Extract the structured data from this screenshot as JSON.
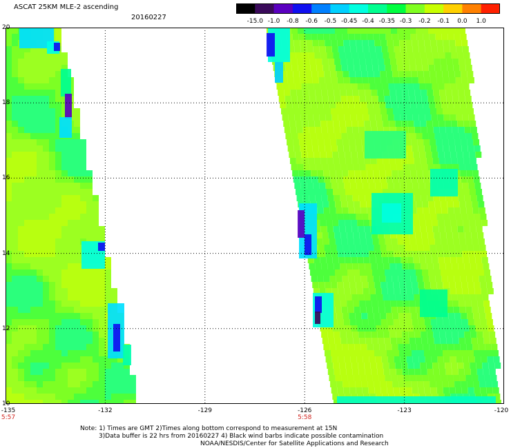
{
  "title": "ASCAT 25KM MLE-2 ascending",
  "date": "20160227",
  "colorbar": {
    "labels": [
      "-15.0",
      "-1.0",
      "-0.8",
      "-0.6",
      "-0.5",
      "-0.45",
      "-0.4",
      "-0.35",
      "-0.3",
      "-0.2",
      "-0.1",
      "0.0",
      "1.0"
    ],
    "colors": [
      "#000000",
      "#3a0a5a",
      "#5a00c0",
      "#1010f0",
      "#0080ff",
      "#00d0ff",
      "#00ffe0",
      "#00ff90",
      "#00ff40",
      "#80ff20",
      "#c8ff00",
      "#ffd000",
      "#ff8000",
      "#ff2000"
    ]
  },
  "axes": {
    "lat_labels": [
      "20",
      "18",
      "16",
      "14",
      "12",
      "10"
    ],
    "lon_labels": [
      "-135",
      "-132",
      "-129",
      "-126",
      "-123",
      "-120"
    ],
    "lat_range": [
      10,
      20
    ],
    "lon_range": [
      -135,
      -120
    ],
    "grid": "dotted"
  },
  "swath_times": [
    {
      "lon": -135,
      "label": "5:57"
    },
    {
      "lon": -126,
      "label": "5:58"
    }
  ],
  "notes": [
    "Note: 1) Times are GMT 2)Times along bottom correspond to measurement at 15N",
    "3)Data buffer is 22 hrs from 20160227 4) Black wind barbs indicate possible contamination",
    "NOAA/NESDIS/Center for Satellite Applications and Research"
  ]
}
